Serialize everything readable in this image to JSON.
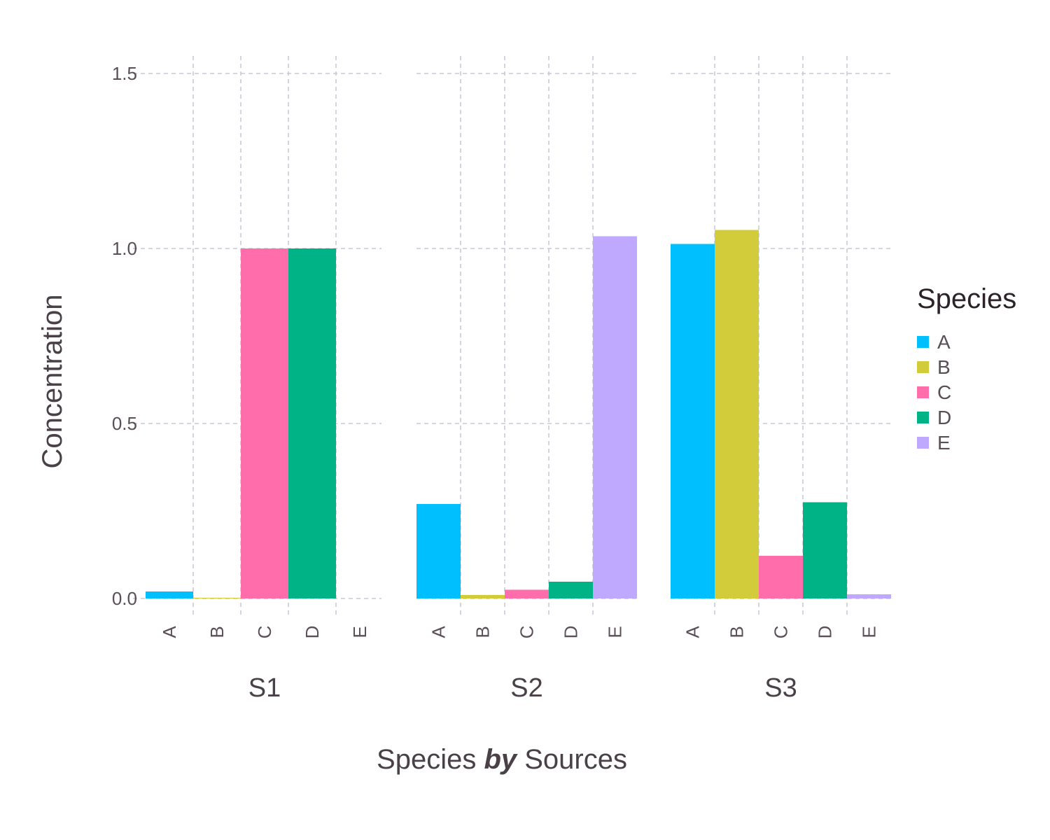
{
  "chart_data": {
    "type": "bar",
    "facets": [
      "S1",
      "S2",
      "S3"
    ],
    "categories": [
      "A",
      "B",
      "C",
      "D",
      "E"
    ],
    "series": [
      {
        "facet": "S1",
        "values": [
          0.02,
          0.002,
          1.0,
          1.0,
          0.0
        ]
      },
      {
        "facet": "S2",
        "values": [
          0.27,
          0.01,
          0.025,
          0.048,
          1.035
        ]
      },
      {
        "facet": "S3",
        "values": [
          1.013,
          1.053,
          0.122,
          0.275,
          0.012
        ]
      }
    ],
    "colors": {
      "A": "#00bfff",
      "B": "#d2cb3a",
      "C": "#ff6eaa",
      "D": "#00b386",
      "E": "#bea9ff"
    },
    "ylim": [
      0,
      1.5
    ],
    "yticks": [
      "0.0",
      "0.5",
      "1.0",
      "1.5"
    ],
    "ylabel": "Concentration",
    "xlabel_parts": [
      "Species ",
      "by",
      " Sources"
    ],
    "legend": {
      "title": "Species",
      "entries": [
        "A",
        "B",
        "C",
        "D",
        "E"
      ],
      "position": "right"
    },
    "grid": true
  }
}
